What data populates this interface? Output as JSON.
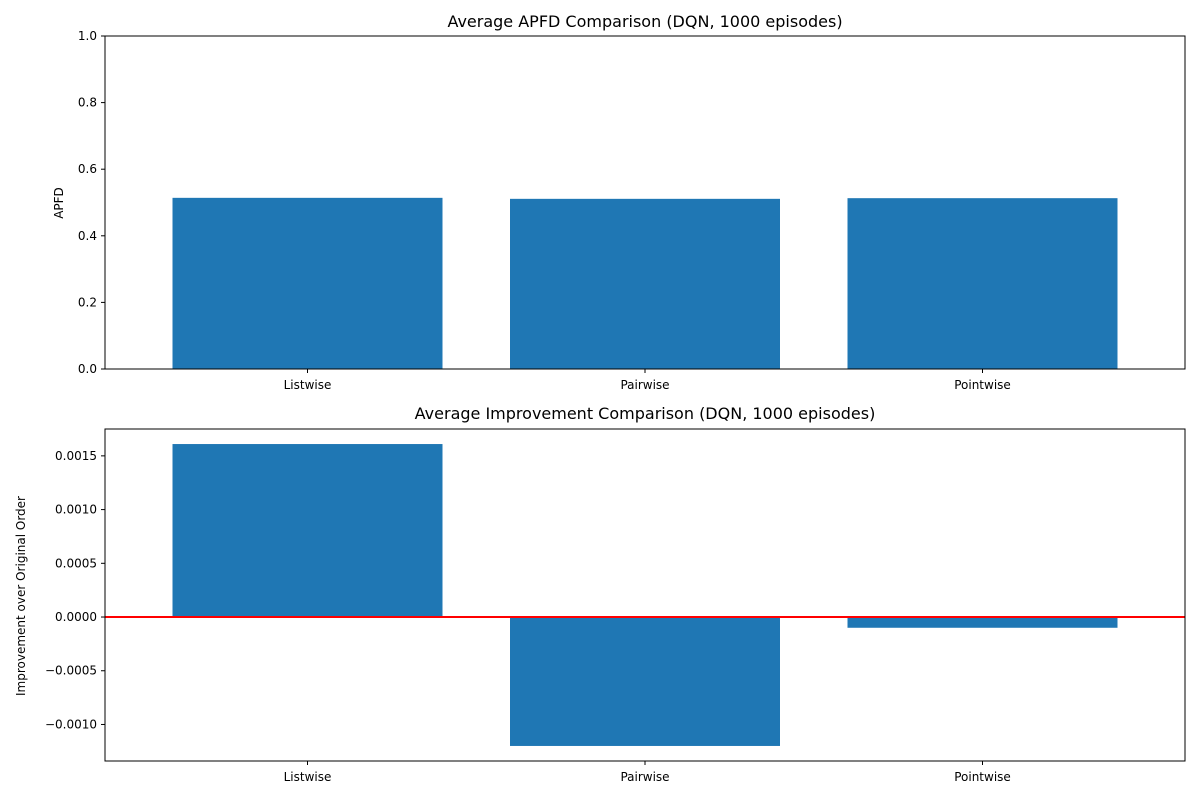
{
  "chart_data": [
    {
      "type": "bar",
      "title": "Average APFD Comparison (DQN, 1000 episodes)",
      "xlabel": "",
      "ylabel": "APFD",
      "categories": [
        "Listwise",
        "Pairwise",
        "Pointwise"
      ],
      "values": [
        0.514,
        0.511,
        0.513
      ],
      "ylim": [
        0,
        1.0
      ],
      "yticks": [
        "0.0",
        "0.2",
        "0.4",
        "0.6",
        "0.8",
        "1.0"
      ],
      "bar_color": "#1f77b4",
      "grid": false
    },
    {
      "type": "bar",
      "title": "Average Improvement Comparison (DQN, 1000 episodes)",
      "xlabel": "",
      "ylabel": "Improvement over Original Order",
      "categories": [
        "Listwise",
        "Pairwise",
        "Pointwise"
      ],
      "values": [
        0.00161,
        -0.0012,
        -0.0001
      ],
      "ylim": [
        -0.00134,
        0.00175
      ],
      "yticks": [
        "−0.0010",
        "−0.0005",
        "0.0000",
        "0.0005",
        "0.0010",
        "0.0015"
      ],
      "reference_line": {
        "y": 0,
        "color": "#ff0000"
      },
      "bar_color": "#1f77b4",
      "grid": false
    }
  ]
}
